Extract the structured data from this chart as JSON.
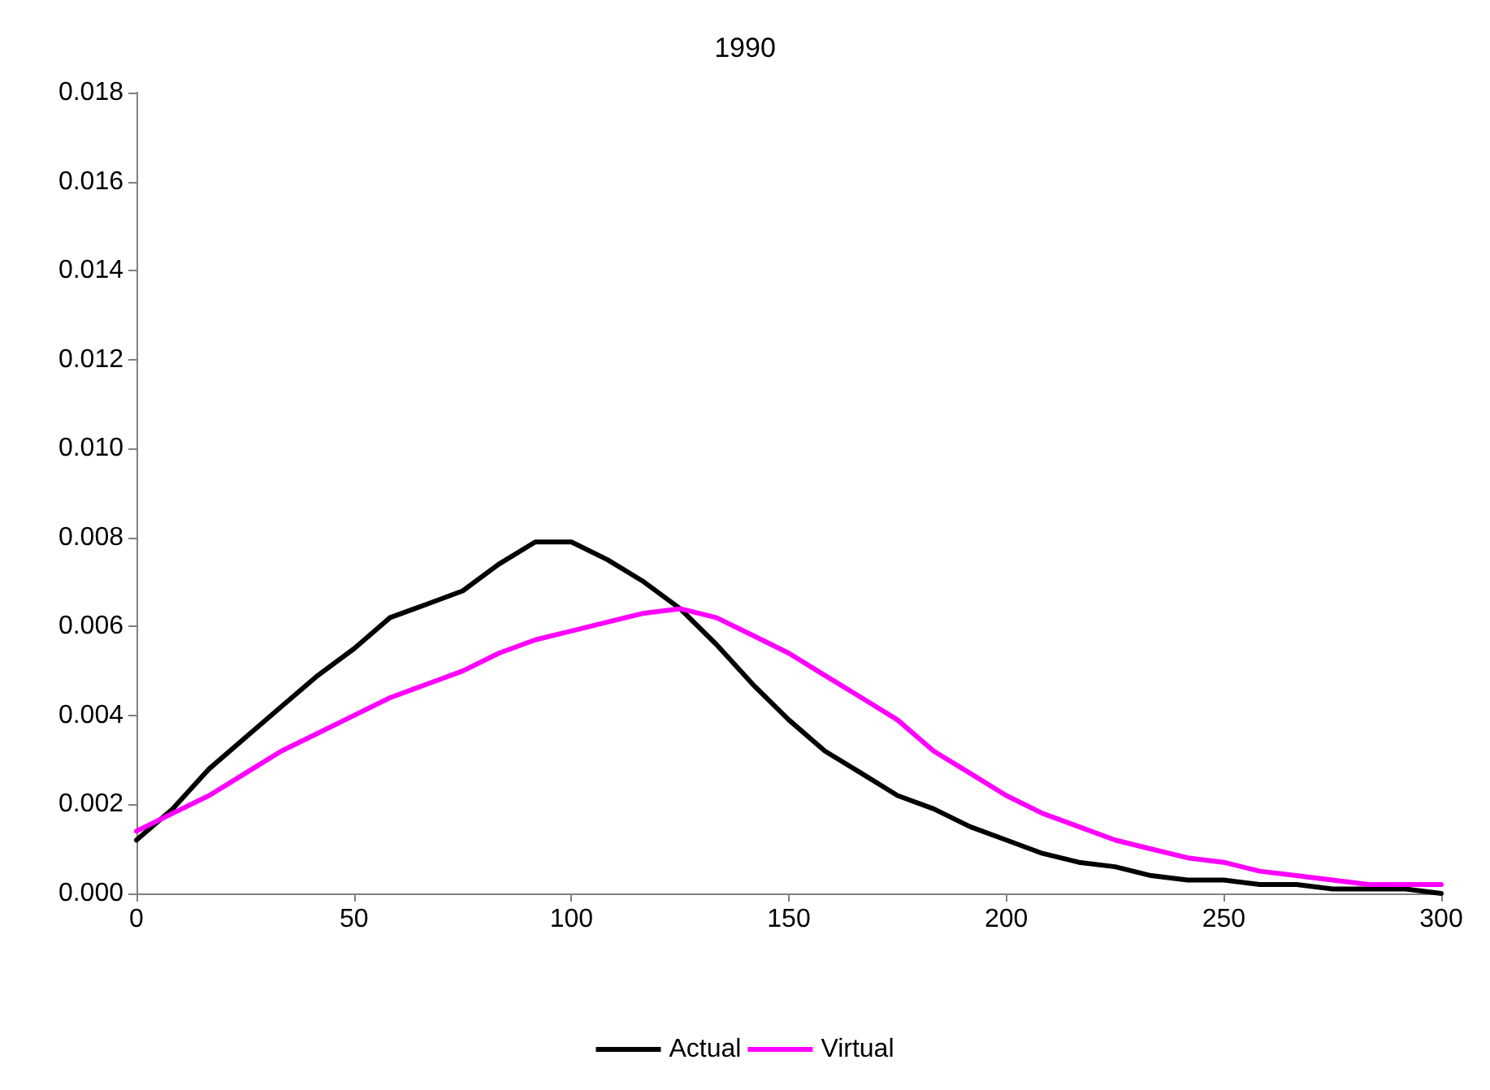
{
  "chart_data": {
    "type": "line",
    "title": "1990",
    "x": [
      0,
      8.3,
      16.7,
      25,
      33.3,
      41.7,
      50,
      58.3,
      66.7,
      75,
      83.3,
      91.7,
      100,
      108.3,
      116.7,
      125,
      133.3,
      141.7,
      150,
      158.3,
      166.7,
      175,
      183.3,
      191.7,
      200,
      208.3,
      216.7,
      225,
      233.3,
      241.7,
      250,
      258.3,
      266.7,
      275,
      283.3,
      291.7,
      300
    ],
    "series": [
      {
        "name": "Actual",
        "color": "#000000",
        "values": [
          0.0012,
          0.0019,
          0.0028,
          0.0035,
          0.0042,
          0.0049,
          0.0055,
          0.0062,
          0.0065,
          0.0068,
          0.0074,
          0.0079,
          0.0079,
          0.0075,
          0.007,
          0.0064,
          0.0056,
          0.0047,
          0.0039,
          0.0032,
          0.0027,
          0.0022,
          0.0019,
          0.0015,
          0.0012,
          0.0009,
          0.0007,
          0.0006,
          0.0004,
          0.0003,
          0.0003,
          0.0002,
          0.0002,
          0.0001,
          0.0001,
          0.0001,
          0.0
        ]
      },
      {
        "name": "Virtual",
        "color": "#ff00ff",
        "values": [
          0.0014,
          0.0018,
          0.0022,
          0.0027,
          0.0032,
          0.0036,
          0.004,
          0.0044,
          0.0047,
          0.005,
          0.0054,
          0.0057,
          0.0059,
          0.0061,
          0.0063,
          0.0064,
          0.0062,
          0.0058,
          0.0054,
          0.0049,
          0.0044,
          0.0039,
          0.0032,
          0.0027,
          0.0022,
          0.0018,
          0.0015,
          0.0012,
          0.001,
          0.0008,
          0.0007,
          0.0005,
          0.0004,
          0.0003,
          0.0002,
          0.0002,
          0.0002
        ]
      }
    ],
    "xlim": [
      0,
      300
    ],
    "xticks": [
      0,
      50,
      100,
      150,
      200,
      250,
      300
    ],
    "ylim": [
      0,
      0.018
    ],
    "yticks": [
      {
        "value": 0,
        "label": "0.000"
      },
      {
        "value": 0.002,
        "label": "0.002"
      },
      {
        "value": 0.004,
        "label": "0.004"
      },
      {
        "value": 0.006,
        "label": "0.006"
      },
      {
        "value": 0.008,
        "label": "0.008"
      },
      {
        "value": 0.01,
        "label": "0.010"
      },
      {
        "value": 0.012,
        "label": "0.012"
      },
      {
        "value": 0.014,
        "label": "0.014"
      },
      {
        "value": 0.016,
        "label": "0.016"
      },
      {
        "value": 0.018,
        "label": "0.018"
      }
    ],
    "grid": false,
    "legend": "bottom",
    "marker": "none",
    "line_style": "solid"
  }
}
